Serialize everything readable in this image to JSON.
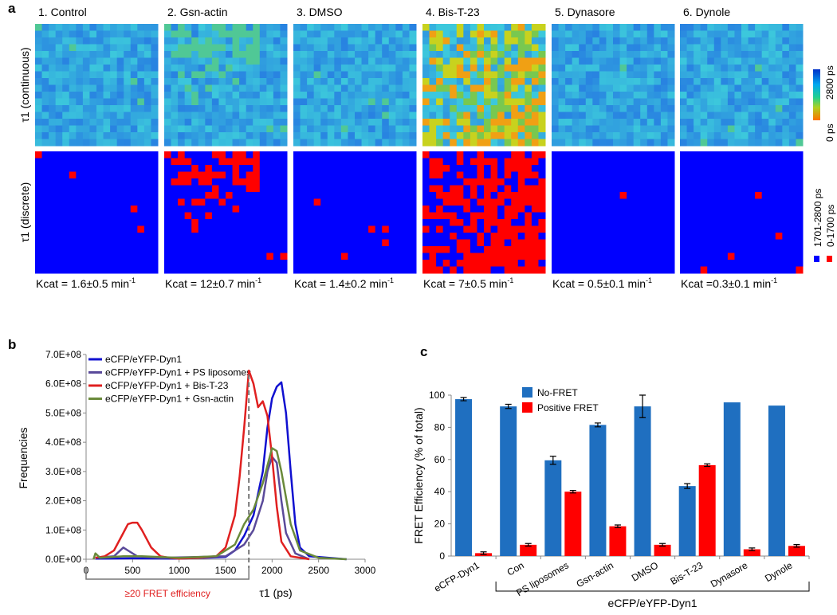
{
  "panel_a": {
    "label": "a",
    "columns": [
      {
        "title": "1.  Control",
        "kcat": "Kcat = 1.6±0.5 min",
        "kcat_sup": "-1"
      },
      {
        "title": "2. Gsn-actin",
        "kcat": "Kcat = 12±0.7 min",
        "kcat_sup": "-1"
      },
      {
        "title": "3. DMSO",
        "kcat": "Kcat = 1.4±0.2 min",
        "kcat_sup": "-1"
      },
      {
        "title": "4. Bis-T-23",
        "kcat": "Kcat = 7±0.5 min",
        "kcat_sup": "-1"
      },
      {
        "title": "5. Dynasore",
        "kcat": "Kcat = 0.5±0.1 min",
        "kcat_sup": "-1"
      },
      {
        "title": "6. Dynole",
        "kcat": "Kcat =0.3±0.1 min",
        "kcat_sup": "-1"
      }
    ],
    "row_labels": [
      "τ1 (continuous)",
      "τ1 (discrete)"
    ],
    "colorbar": {
      "max_label": "2800 ps",
      "min_label": "0 ps"
    },
    "discrete_legend": [
      "1701-2800 ps",
      "0-1700 ps"
    ]
  },
  "chart_data": [
    {
      "type": "line",
      "panel_label": "b",
      "x_label": "τ1 (ps)",
      "y_label": "Frequencies",
      "xlim": [
        0,
        3000
      ],
      "xticks": [
        0,
        500,
        1000,
        1500,
        2000,
        2500,
        3000
      ],
      "ylim": [
        0,
        700000000
      ],
      "yticks": [
        {
          "value": 0,
          "label": "0.0E+00"
        },
        {
          "value": 100000000,
          "label": "1.0E+08"
        },
        {
          "value": 200000000,
          "label": "2.0E+08"
        },
        {
          "value": 300000000,
          "label": "3.0E+08"
        },
        {
          "value": 400000000,
          "label": "4.0E+08"
        },
        {
          "value": 500000000,
          "label": "5.0E+08"
        },
        {
          "value": 600000000,
          "label": "6.0E+08"
        },
        {
          "value": 700000000,
          "label": "7.0E+08"
        }
      ],
      "threshold": 1750,
      "annotation": "≥20 FRET efficiency",
      "series": [
        {
          "name": "eCFP/eYFP-Dyn1",
          "color": "#1010d0",
          "x": [
            100,
            500,
            1000,
            1500,
            1600,
            1700,
            1800,
            1900,
            1950,
            2000,
            2050,
            2100,
            2150,
            2200,
            2250,
            2300,
            2400,
            2800
          ],
          "values": [
            2000000,
            3000000,
            2000000,
            8000000,
            30000000,
            80000000,
            150000000,
            300000000,
            450000000,
            550000000,
            590000000,
            605000000,
            500000000,
            300000000,
            120000000,
            40000000,
            10000000,
            0
          ]
        },
        {
          "name": "eCFP/eYFP-Dyn1 + PS liposomes",
          "color": "#5a4a9a",
          "x": [
            100,
            300,
            400,
            450,
            550,
            800,
            1500,
            1700,
            1800,
            1900,
            1950,
            2000,
            2050,
            2100,
            2150,
            2250,
            2400
          ],
          "values": [
            5000000,
            10000000,
            40000000,
            30000000,
            10000000,
            5000000,
            10000000,
            50000000,
            100000000,
            200000000,
            300000000,
            350000000,
            330000000,
            200000000,
            90000000,
            20000000,
            0
          ]
        },
        {
          "name": "eCFP/eYFP-Dyn1 + Bis-T-23",
          "color": "#e02020",
          "x": [
            100,
            200,
            300,
            400,
            450,
            500,
            550,
            600,
            700,
            800,
            900,
            1000,
            1200,
            1400,
            1500,
            1600,
            1650,
            1700,
            1750,
            1800,
            1850,
            1900,
            1950,
            2000,
            2050,
            2100,
            2200,
            2400
          ],
          "values": [
            5000000,
            10000000,
            30000000,
            90000000,
            120000000,
            125000000,
            125000000,
            100000000,
            40000000,
            10000000,
            5000000,
            2000000,
            5000000,
            10000000,
            40000000,
            150000000,
            280000000,
            450000000,
            645000000,
            600000000,
            520000000,
            540000000,
            490000000,
            350000000,
            180000000,
            60000000,
            10000000,
            0
          ]
        },
        {
          "name": "eCFP/eYFP-Dyn1 + Gsn-actin",
          "color": "#6a8a3a",
          "x": [
            80,
            100,
            150,
            400,
            600,
            1000,
            1400,
            1600,
            1700,
            1800,
            1900,
            2000,
            2050,
            2100,
            2200,
            2300,
            2500,
            2800
          ],
          "values": [
            0,
            20000000,
            5000000,
            10000000,
            10000000,
            5000000,
            10000000,
            50000000,
            120000000,
            170000000,
            260000000,
            380000000,
            370000000,
            300000000,
            120000000,
            30000000,
            5000000,
            0
          ]
        }
      ]
    },
    {
      "type": "bar",
      "panel_label": "c",
      "y_label": "FRET Efficiency (% of total)",
      "group_label": "eCFP/eYFP-Dyn1",
      "categories": [
        "eCFP-Dyn1",
        "Con",
        "PS liposomes",
        "Gsn-actin",
        "DMSO",
        "Bis-T-23",
        "Dynasore",
        "Dynole"
      ],
      "ylim": [
        0,
        100
      ],
      "yticks": [
        0,
        20,
        40,
        60,
        80,
        100
      ],
      "series": [
        {
          "name": "No-FRET",
          "color": "#1f6fc0",
          "values": [
            97.5,
            93,
            59.5,
            81.5,
            93,
            43.5,
            95.5,
            93.5
          ],
          "errors": [
            1,
            1.3,
            2.5,
            1.2,
            7,
            1.5,
            null,
            null
          ]
        },
        {
          "name": "Positive FRET",
          "color": "#ff0000",
          "values": [
            1.8,
            7,
            40,
            18.5,
            7,
            56.5,
            4.2,
            6.3
          ],
          "errors": [
            0.8,
            0.8,
            0.8,
            0.8,
            0.8,
            0.8,
            0.8,
            0.8
          ]
        }
      ]
    }
  ]
}
